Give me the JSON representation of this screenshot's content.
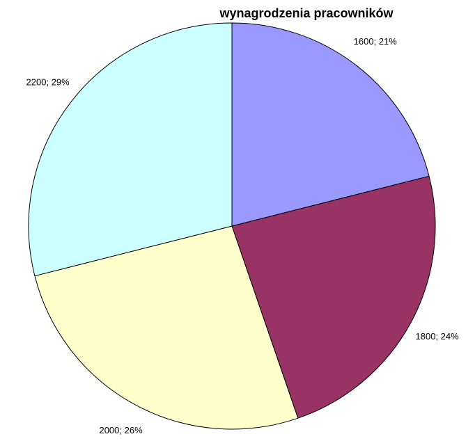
{
  "chart_data": {
    "type": "pie",
    "title": "wynagrodzenia pracowników",
    "values": [
      1600,
      1800,
      2000,
      2200
    ],
    "value_labels": [
      "1600; 21%",
      "1800; 24%",
      "2000; 26%",
      "2200; 29%"
    ],
    "colors": [
      "#9999ff",
      "#993366",
      "#ffffcc",
      "#ccffff"
    ]
  }
}
